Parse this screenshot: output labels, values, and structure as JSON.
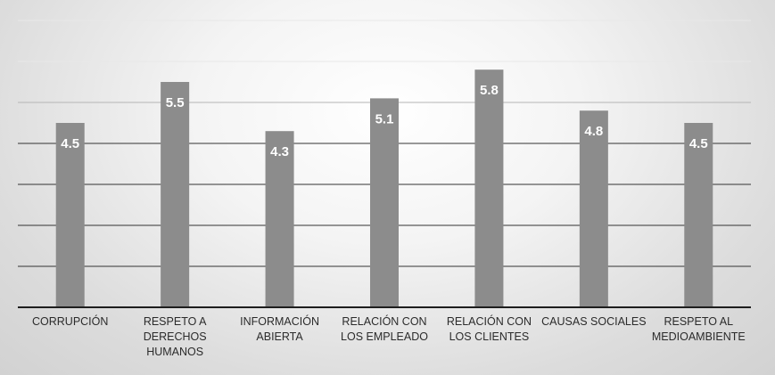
{
  "chart_data": {
    "type": "bar",
    "categories": [
      "CORRUPCIÓN",
      "RESPETO A DERECHOS HUMANOS",
      "INFORMACIÓN ABIERTA",
      "RELACIÓN CON LOS EMPLEADO",
      "RELACIÓN CON LOS CLIENTES",
      "CAUSAS SOCIALES",
      "RESPETO AL MEDIOAMBIENTE"
    ],
    "values": [
      4.5,
      5.5,
      4.3,
      5.1,
      5.8,
      4.8,
      4.5
    ],
    "data_labels": [
      "4.5",
      "5.5",
      "4.3",
      "5.1",
      "5.8",
      "4.8",
      "4.5"
    ],
    "title": "",
    "xlabel": "",
    "ylabel": "",
    "ylim": [
      0,
      7
    ],
    "grid": true,
    "legend": "none",
    "colors": {
      "bar": "#8c8c8c",
      "label": "#ffffff",
      "gridline": "#333333",
      "axis": "#1e1e1e"
    }
  }
}
